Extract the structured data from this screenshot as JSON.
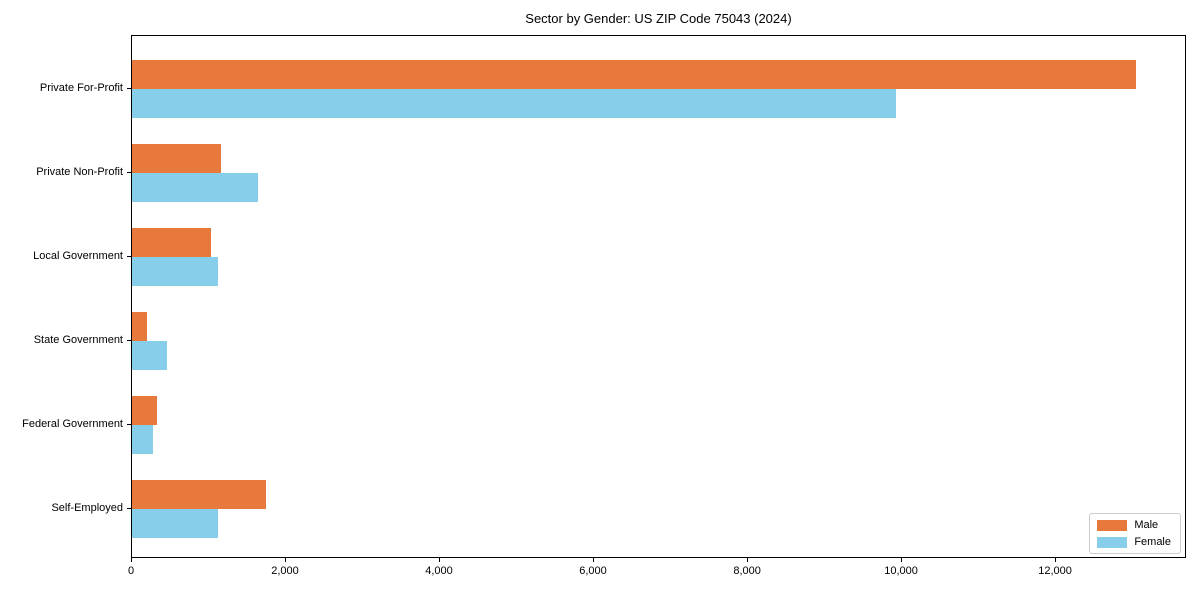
{
  "title": "Sector by Gender: US ZIP Code 75043 (2024)",
  "colors": {
    "male": "#e8793d",
    "female": "#87ceeb",
    "axis": "#000000",
    "legend_border": "#cccccc",
    "background": "#ffffff"
  },
  "legend": {
    "position": "lower right",
    "items": [
      {
        "label": "Male",
        "color_key": "male"
      },
      {
        "label": "Female",
        "color_key": "female"
      }
    ]
  },
  "chart_data": {
    "type": "bar",
    "orientation": "horizontal",
    "title": "Sector by Gender: US ZIP Code 75043 (2024)",
    "xlabel": "",
    "ylabel": "",
    "grid": false,
    "legend_position": "lower right",
    "categories": [
      "Private For-Profit",
      "Private Non-Profit",
      "Local Government",
      "State Government",
      "Federal Government",
      "Self-Employed"
    ],
    "series": [
      {
        "name": "Male",
        "color": "#e8793d",
        "values": [
          13040,
          1160,
          1030,
          200,
          330,
          1740
        ]
      },
      {
        "name": "Female",
        "color": "#87ceeb",
        "values": [
          9920,
          1630,
          1120,
          450,
          270,
          1120
        ]
      }
    ],
    "xlim": [
      0,
      13700
    ],
    "xticks": [
      {
        "value": 0,
        "label": "0"
      },
      {
        "value": 2000,
        "label": "2,000"
      },
      {
        "value": 4000,
        "label": "4,000"
      },
      {
        "value": 6000,
        "label": "6,000"
      },
      {
        "value": 8000,
        "label": "8,000"
      },
      {
        "value": 10000,
        "label": "10,000"
      },
      {
        "value": 12000,
        "label": "12,000"
      }
    ]
  }
}
